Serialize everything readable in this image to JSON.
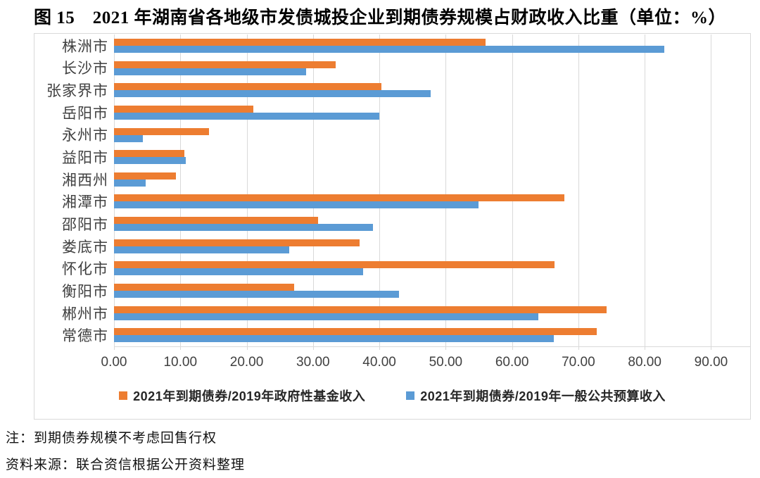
{
  "title": "图 15　2021 年湖南省各地级市发债城投企业到期债券规模占财政收入比重（单位：%）",
  "notes": [
    "注：到期债券规模不考虑回售行权",
    "资料来源：联合资信根据公开资料整理"
  ],
  "colors": {
    "series_orange": "#ED7D31",
    "series_blue": "#5B9BD5",
    "gridline": "#D9D9D9",
    "chart_border": "#D9D9D9",
    "axis_text": "#404040"
  },
  "chart_data": {
    "type": "bar",
    "orientation": "horizontal",
    "title": "图 15　2021 年湖南省各地级市发债城投企业到期债券规模占财政收入比重（单位：%）",
    "categories": [
      "株洲市",
      "长沙市",
      "张家界市",
      "岳阳市",
      "永州市",
      "益阳市",
      "湘西州",
      "湘潭市",
      "邵阳市",
      "娄底市",
      "怀化市",
      "衡阳市",
      "郴州市",
      "常德市"
    ],
    "series": [
      {
        "name": "2021年到期债券/2019年政府性基金收入",
        "color": "#ED7D31",
        "values": [
          56.0,
          33.4,
          40.3,
          21.0,
          14.3,
          10.6,
          9.3,
          67.9,
          30.8,
          37.0,
          66.4,
          27.2,
          74.3,
          72.8
        ]
      },
      {
        "name": "2021年到期债券/2019年一般公共预算收入",
        "color": "#5B9BD5",
        "values": [
          83.0,
          29.0,
          47.7,
          40.0,
          4.3,
          10.8,
          4.8,
          55.0,
          39.0,
          26.4,
          37.6,
          43.0,
          64.0,
          66.3
        ]
      }
    ],
    "x_ticks": [
      "0.00",
      "10.00",
      "20.00",
      "30.00",
      "40.00",
      "50.00",
      "60.00",
      "70.00",
      "80.00",
      "90.00"
    ],
    "xlim": [
      0,
      96
    ],
    "grid": "vertical",
    "legend_position": "bottom"
  }
}
